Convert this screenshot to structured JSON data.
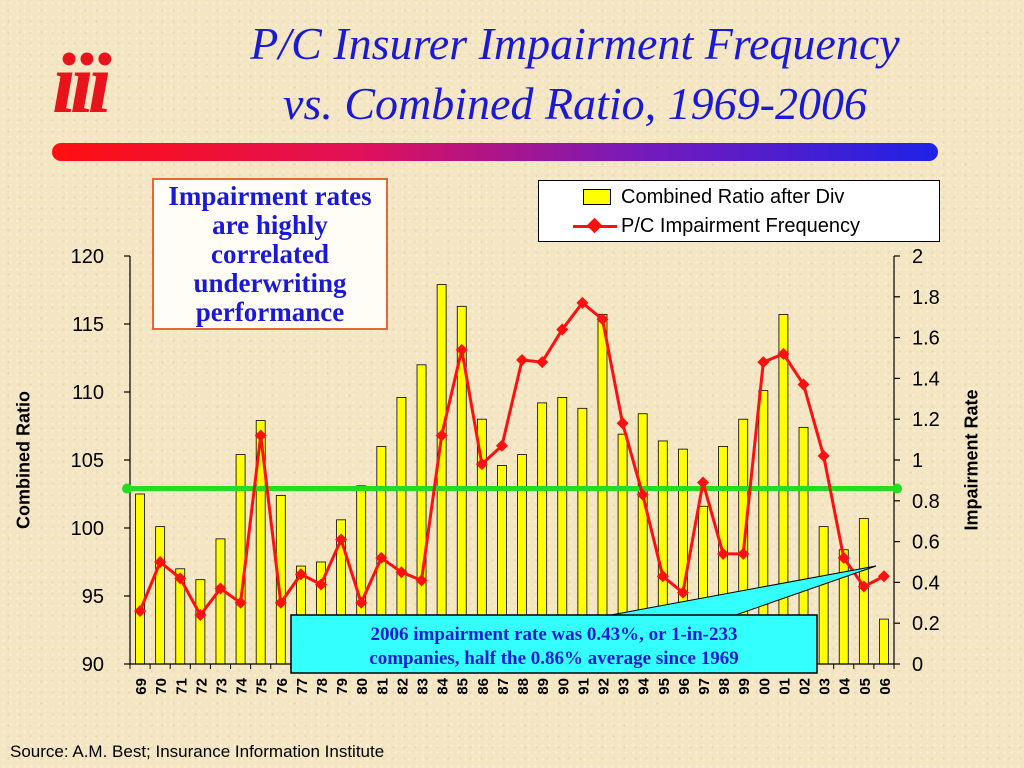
{
  "logo_text": "iii",
  "title_line1": "P/C Insurer Impairment Frequency",
  "title_line2": "vs. Combined Ratio, 1969-2006",
  "callout_text": "Impairment rates are highly correlated underwriting performance",
  "annotation_line1": "2006 impairment rate was 0.43%, or 1-in-233",
  "annotation_line2": "companies, half the 0.86% average since 1969",
  "source": "Source: A.M. Best; Insurance Information Institute",
  "colors": {
    "bars": "#ffff00",
    "line": "#ff1010",
    "average": "#22dd22",
    "title": "#1a1ad6",
    "annotation_bg": "#33ffff"
  },
  "chart_data": {
    "type": "bar+line",
    "title": "P/C Insurer Impairment Frequency vs. Combined Ratio, 1969-2006",
    "categories": [
      "69",
      "70",
      "71",
      "72",
      "73",
      "74",
      "75",
      "76",
      "77",
      "78",
      "79",
      "80",
      "81",
      "82",
      "83",
      "84",
      "85",
      "86",
      "87",
      "88",
      "89",
      "90",
      "91",
      "92",
      "93",
      "94",
      "95",
      "96",
      "97",
      "98",
      "99",
      "00",
      "01",
      "02",
      "03",
      "04",
      "05",
      "06"
    ],
    "ylabel_left": "Combined Ratio",
    "ylabel_right": "Impairment Rate",
    "ylim_left": [
      90,
      120
    ],
    "ylim_right": [
      0,
      2
    ],
    "yticks_left": [
      90,
      95,
      100,
      105,
      110,
      115,
      120
    ],
    "yticks_right": [
      0,
      0.2,
      0.4,
      0.6,
      0.8,
      1,
      1.2,
      1.4,
      1.6,
      1.8,
      2
    ],
    "legend_position": "top-right",
    "average_impairment": 0.86,
    "series": [
      {
        "name": "Combined Ratio after Div",
        "axis": "left",
        "render": "bar",
        "values": [
          102.5,
          100.1,
          97.0,
          96.2,
          99.2,
          105.4,
          107.9,
          102.4,
          97.2,
          97.5,
          100.6,
          103.1,
          106.0,
          109.6,
          112.0,
          117.9,
          116.3,
          108.0,
          104.6,
          105.4,
          109.2,
          109.6,
          108.8,
          115.7,
          106.9,
          108.4,
          106.4,
          105.8,
          101.6,
          106.0,
          108.0,
          110.1,
          115.7,
          107.4,
          100.1,
          98.4,
          100.7,
          93.3
        ]
      },
      {
        "name": "P/C Impairment Frequency",
        "axis": "right",
        "render": "line",
        "values": [
          0.26,
          0.5,
          0.42,
          0.24,
          0.37,
          0.3,
          1.12,
          0.3,
          0.44,
          0.39,
          0.61,
          0.3,
          0.52,
          0.45,
          0.41,
          1.12,
          1.54,
          0.98,
          1.07,
          1.49,
          1.48,
          1.64,
          1.77,
          1.69,
          1.18,
          0.83,
          0.43,
          0.35,
          0.89,
          0.54,
          0.54,
          1.48,
          1.52,
          1.37,
          1.02,
          0.52,
          0.38,
          0.43
        ]
      }
    ]
  }
}
